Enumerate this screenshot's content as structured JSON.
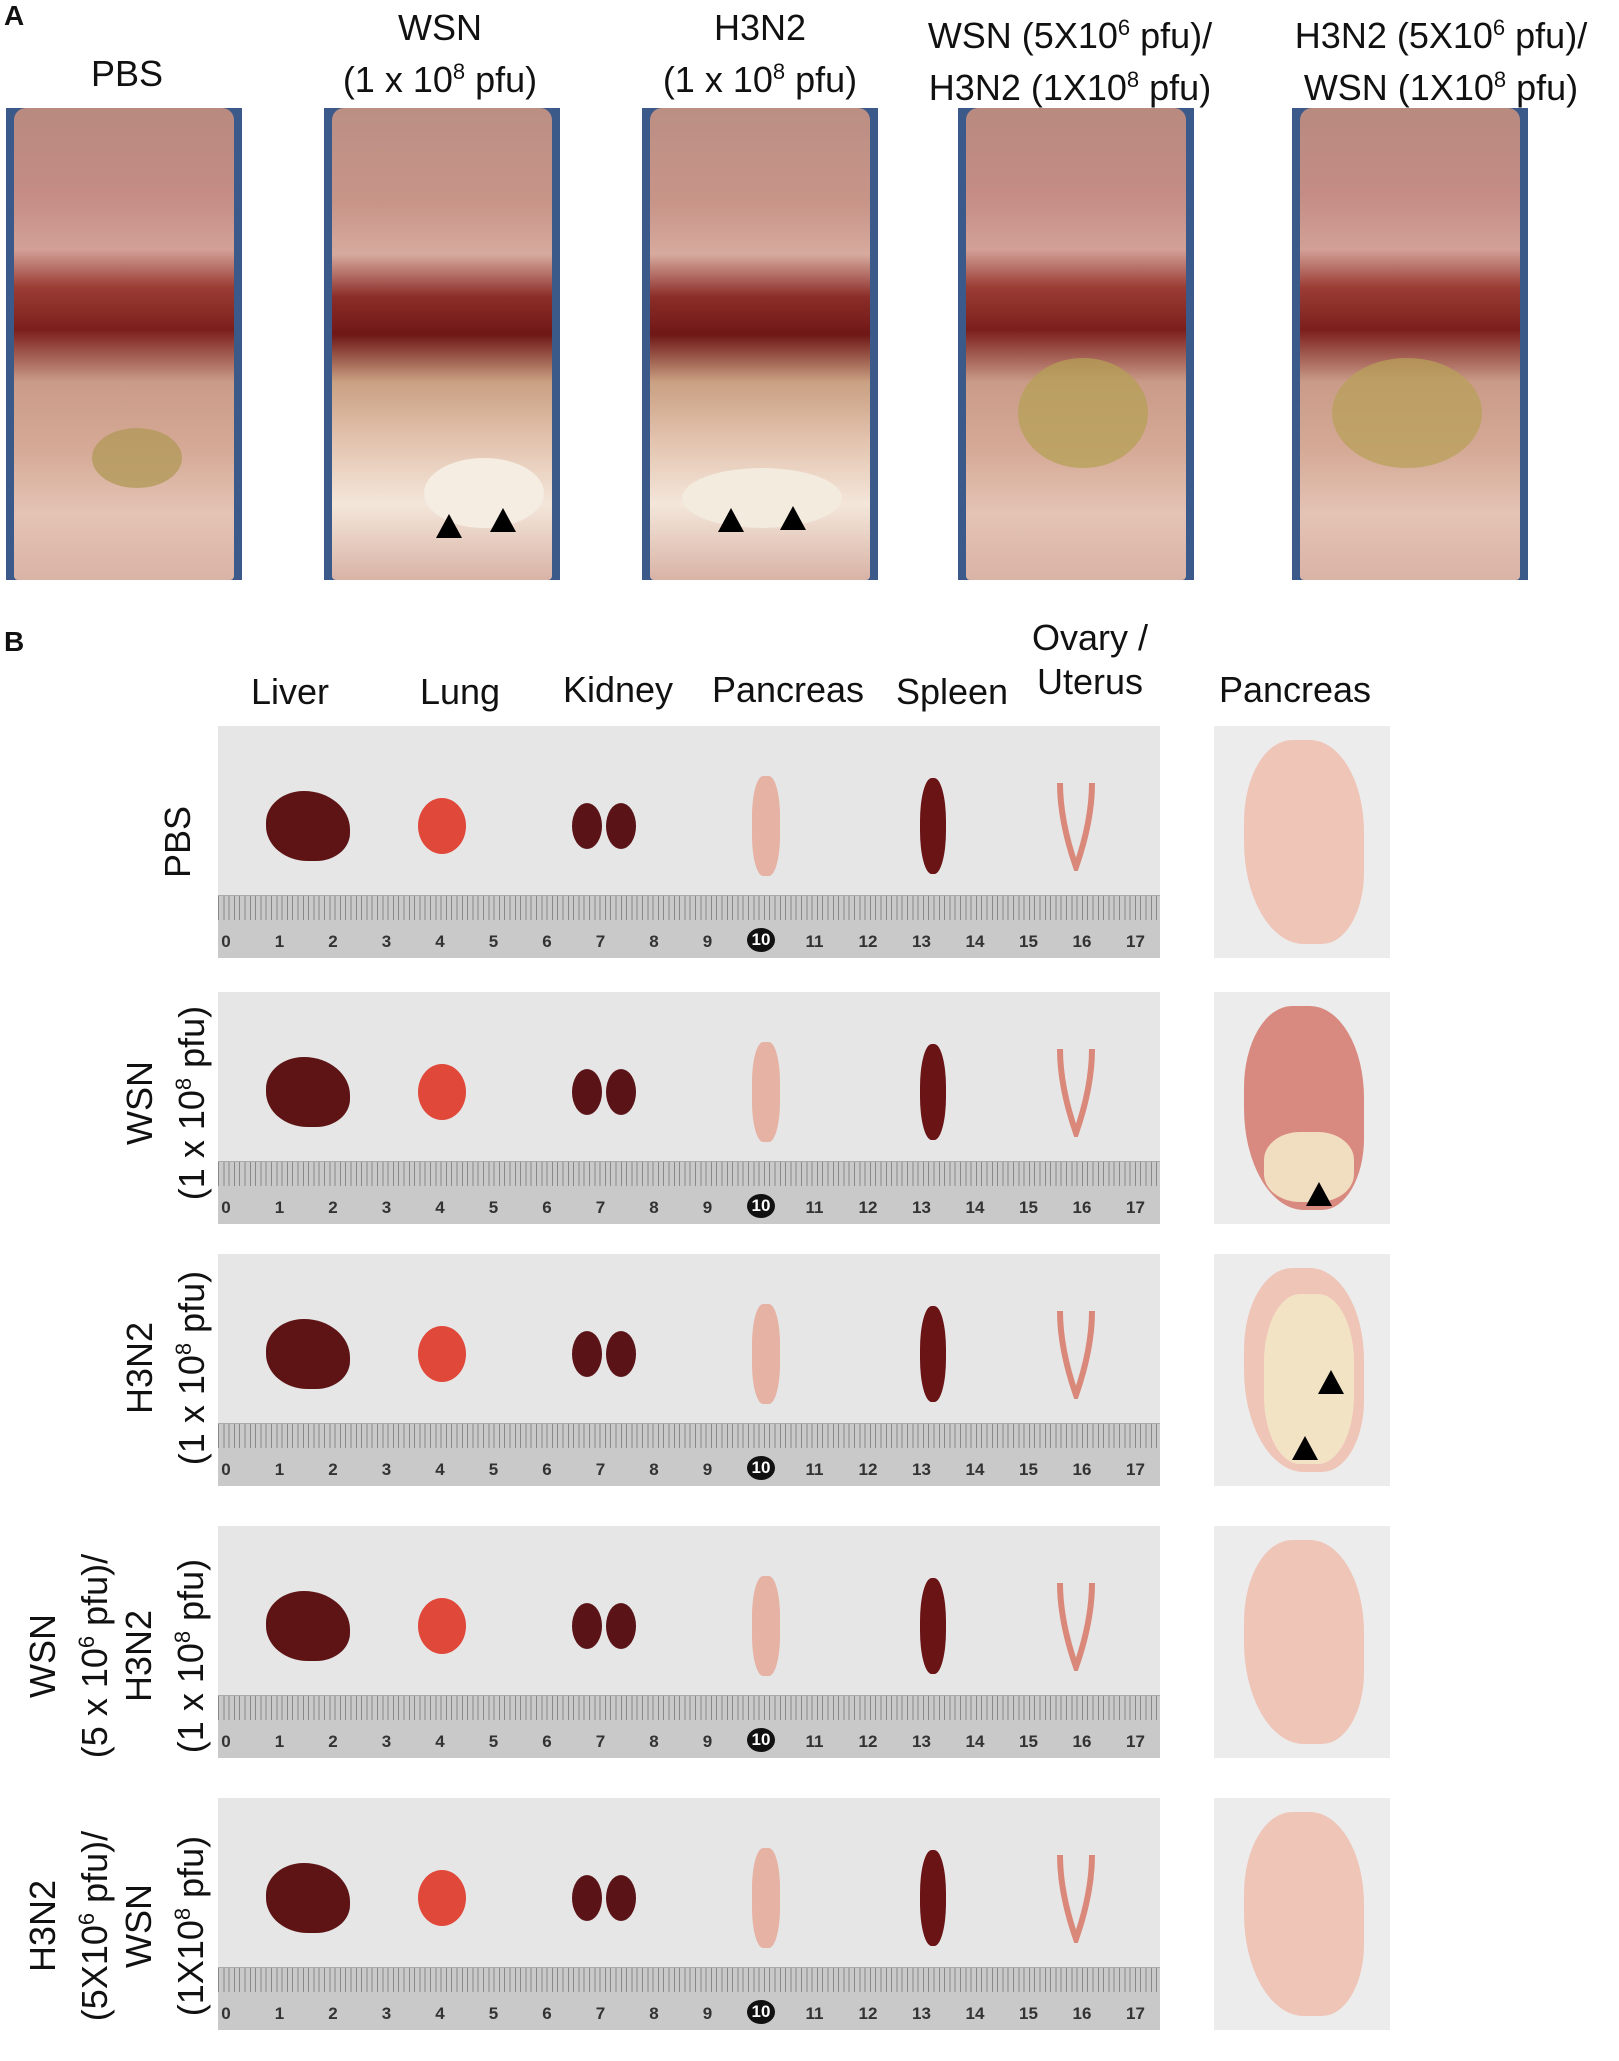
{
  "panel_a": {
    "letter": "A",
    "groups": [
      {
        "line1": "PBS",
        "line2": ""
      },
      {
        "line1": "WSN",
        "line2_pre": "(1 x 10",
        "line2_sup": "8",
        "line2_post": " pfu)"
      },
      {
        "line1": "H3N2",
        "line2_pre": "(1 x 10",
        "line2_sup": "8",
        "line2_post": " pfu)"
      },
      {
        "line1_pre": "WSN (5X10",
        "line1_sup": "6",
        "line1_post": " pfu)/",
        "line2_pre": "H3N2 (1X10",
        "line2_sup": "8",
        "line2_post": " pfu)"
      },
      {
        "line1_pre": "H3N2 (5X10",
        "line1_sup": "6",
        "line1_post": " pfu)/",
        "line2_pre": "WSN (1X10",
        "line2_sup": "8",
        "line2_post": " pfu)"
      }
    ]
  },
  "panel_b": {
    "letter": "B",
    "organ_headers": [
      "Liver",
      "Lung",
      "Kidney",
      "Pancreas",
      "Spleen",
      "Ovary /",
      "Uterus"
    ],
    "pancreas_header": "Pancreas",
    "ruler_numbers": [
      "0",
      "1",
      "2",
      "3",
      "4",
      "5",
      "6",
      "7",
      "8",
      "9",
      "10",
      "11",
      "12",
      "13",
      "14",
      "15",
      "16",
      "17"
    ],
    "rows": [
      {
        "l1": "PBS"
      },
      {
        "l1": "WSN",
        "l2_pre": "(1 x 10",
        "l2_sup": "8",
        "l2_post": " pfu)"
      },
      {
        "l1": "H3N2",
        "l2_pre": "(1 x 10",
        "l2_sup": "8",
        "l2_post": " pfu)"
      },
      {
        "l1": "WSN",
        "l2_pre": "(5 x 10",
        "l2_sup": "6",
        "l2_post": " pfu)/",
        "l3": "H3N2",
        "l4_pre": "(1 x 10",
        "l4_sup": "8",
        "l4_post": " pfu)"
      },
      {
        "l1_pre": "H3N2",
        "l2_pre": "(5X10",
        "l2_sup": "6",
        "l2_post": " pfu)/",
        "l3": "WSN",
        "l4_pre": "(1X10",
        "l4_sup": "8",
        "l4_post": " pfu)"
      }
    ]
  },
  "colors": {
    "liver": "#5e1414",
    "lung": "#e0483a",
    "kidney": "#5a1418",
    "pancreas": "#e6b2a3",
    "spleen": "#6a1416",
    "uterus": "#d9887a",
    "lesion": "#f3e6c6"
  }
}
